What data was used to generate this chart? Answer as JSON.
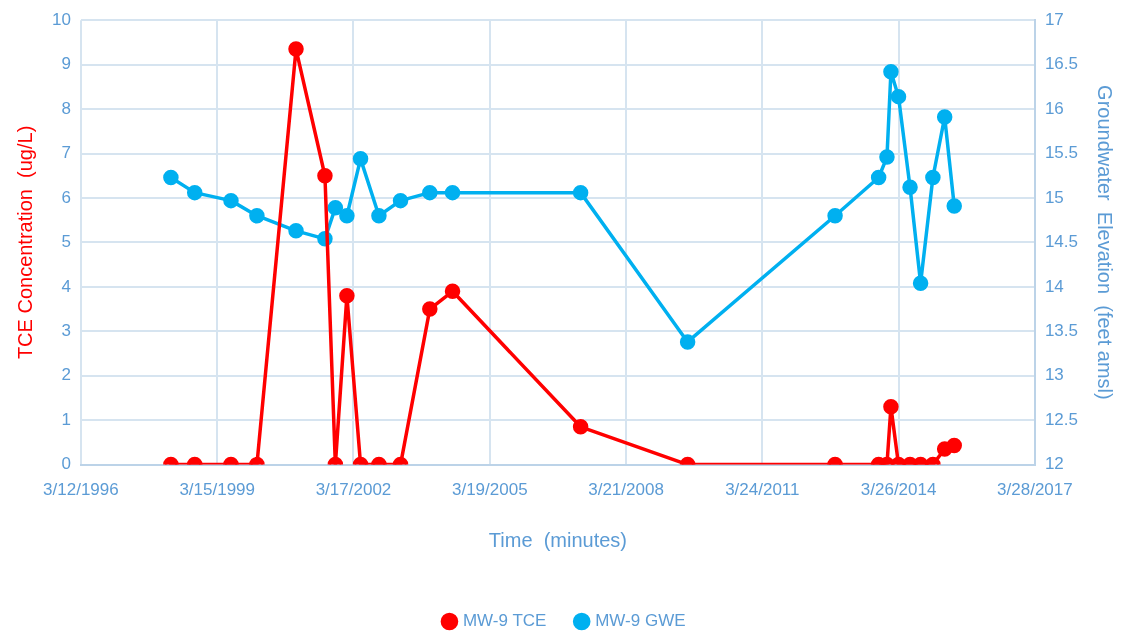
{
  "chart_data": {
    "type": "line",
    "xlabel": "Time  (minutes)",
    "ylabel": "TCE Concentration  (ug/L)",
    "y2label": "Groundwater  Elevation  (feet amsl)",
    "x": [
      "1998-03-07",
      "1998-09-15",
      "1999-07-04",
      "2000-01-29",
      "2000-12-09",
      "2001-07-30",
      "2001-10-22",
      "2002-01-23",
      "2002-05-13",
      "2002-10-08",
      "2003-03-31",
      "2003-11-22",
      "2004-05-23",
      "2007-03-21",
      "2009-07-30",
      "2012-10-30",
      "2013-10-16",
      "2013-12-22",
      "2014-01-23",
      "2014-03-25",
      "2014-06-26",
      "2014-09-19",
      "2014-12-27",
      "2015-04-01",
      "2015-06-17"
    ],
    "series": [
      {
        "name": "MW-9 TCE",
        "color": "#ff0000",
        "values": [
          0,
          0,
          0,
          0,
          9.35,
          6.5,
          0,
          3.8,
          0,
          0,
          0,
          3.5,
          3.9,
          0.85,
          0,
          0,
          0,
          0,
          1.3,
          0,
          0,
          0,
          0,
          0.35,
          0.43
        ]
      },
      {
        "name": "MW-9 GWE",
        "color": "#00b0f0",
        "axis": "y2",
        "values": [
          15.23,
          15.06,
          14.97,
          14.8,
          14.63,
          14.54,
          14.89,
          14.8,
          15.44,
          14.8,
          14.97,
          15.06,
          15.06,
          15.06,
          13.38,
          14.8,
          15.23,
          15.46,
          16.42,
          16.14,
          15.12,
          14.04,
          15.23,
          15.91,
          14.91
        ]
      }
    ],
    "xlim": [
      "1996-03-12",
      "2017-03-28"
    ],
    "xticks": [
      {
        "value": "1996-03-12",
        "label": "3/12/1996"
      },
      {
        "value": "1999-03-15",
        "label": "3/15/1999"
      },
      {
        "value": "2002-03-17",
        "label": "3/17/2002"
      },
      {
        "value": "2005-03-19",
        "label": "3/19/2005"
      },
      {
        "value": "2008-03-21",
        "label": "3/21/2008"
      },
      {
        "value": "2011-03-24",
        "label": "3/24/2011"
      },
      {
        "value": "2014-03-26",
        "label": "3/26/2014"
      },
      {
        "value": "2017-03-28",
        "label": "3/28/2017"
      }
    ],
    "ylim": [
      0,
      10
    ],
    "yticks": [
      0,
      1,
      2,
      3,
      4,
      5,
      6,
      7,
      8,
      9,
      10
    ],
    "y2lim": [
      12,
      17
    ],
    "y2ticks": [
      12,
      12.5,
      13,
      13.5,
      14,
      14.5,
      15,
      15.5,
      16,
      16.5,
      17
    ],
    "grid": true,
    "legend": "bottom",
    "marker": "circle",
    "line_style": "solid"
  }
}
